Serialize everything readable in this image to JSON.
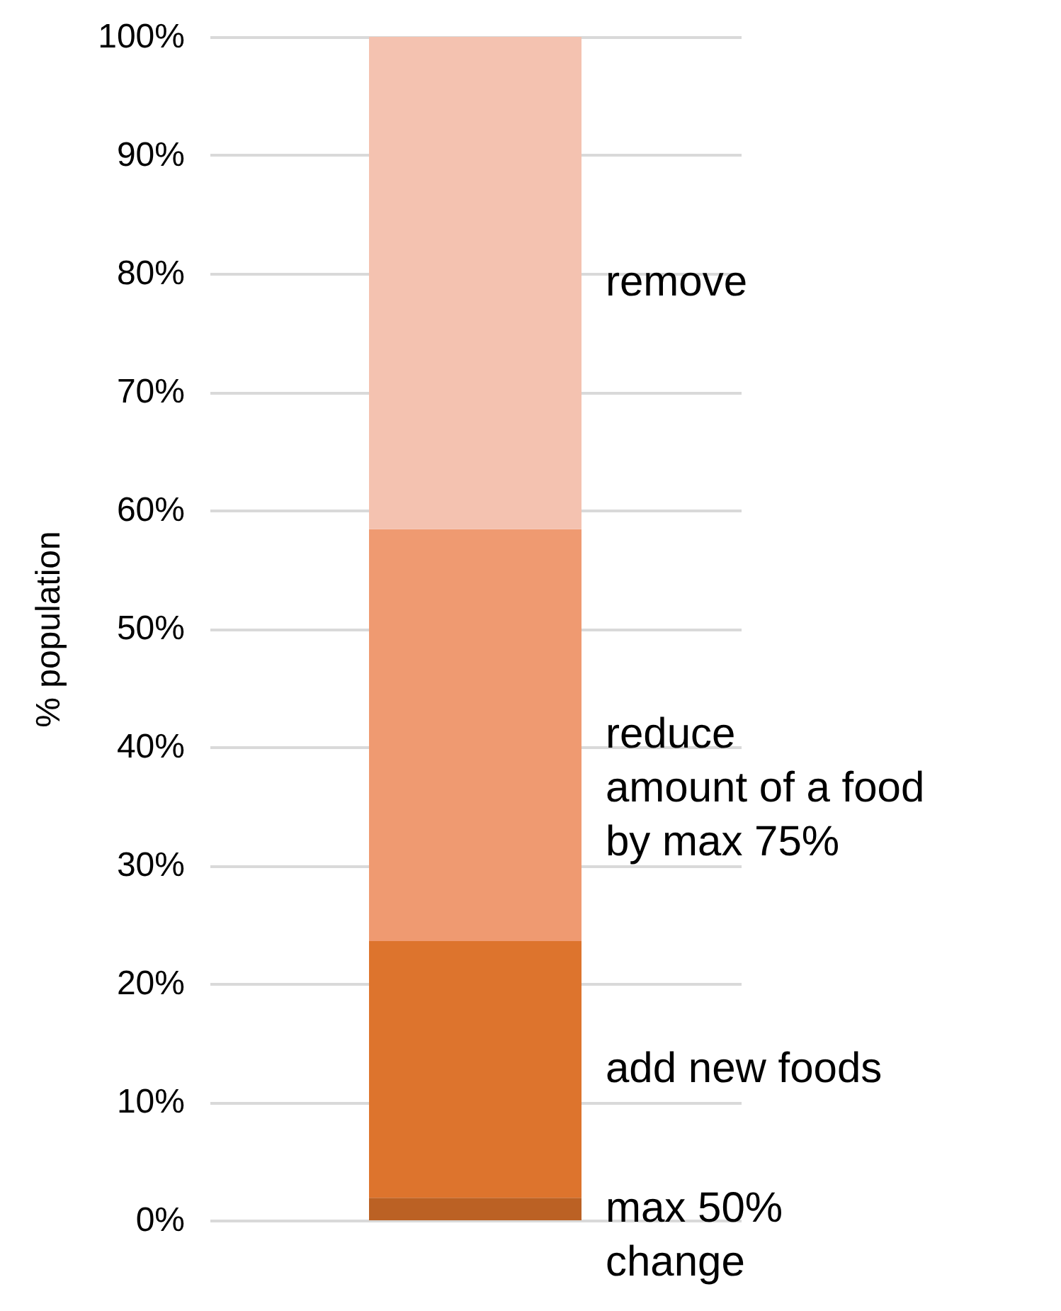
{
  "chart_data": {
    "type": "bar",
    "stacked": true,
    "ylabel": "% population",
    "categories": [
      null
    ],
    "series": [
      {
        "name": "max 50%\nchange",
        "color": "#bb6124",
        "values": [
          1.9
        ]
      },
      {
        "name": "add new foods",
        "color": "#dd742d",
        "values": [
          21.7
        ]
      },
      {
        "name": "reduce\namount of a food\nby max 75%",
        "color": "#ef9a71",
        "values": [
          34.8
        ]
      },
      {
        "name": "remove",
        "color": "#f4c2b0",
        "values": [
          41.6
        ]
      }
    ],
    "ylim": [
      0,
      100
    ],
    "yticks": [
      {
        "value": 0,
        "label": "0%"
      },
      {
        "value": 10,
        "label": "10%"
      },
      {
        "value": 20,
        "label": "20%"
      },
      {
        "value": 30,
        "label": "30%"
      },
      {
        "value": 40,
        "label": "40%"
      },
      {
        "value": 50,
        "label": "50%"
      },
      {
        "value": 60,
        "label": "60%"
      },
      {
        "value": 70,
        "label": "70%"
      },
      {
        "value": 80,
        "label": "80%"
      },
      {
        "value": 90,
        "label": "90%"
      },
      {
        "value": 100,
        "label": "100%"
      }
    ],
    "grid": "y",
    "legend": false
  }
}
